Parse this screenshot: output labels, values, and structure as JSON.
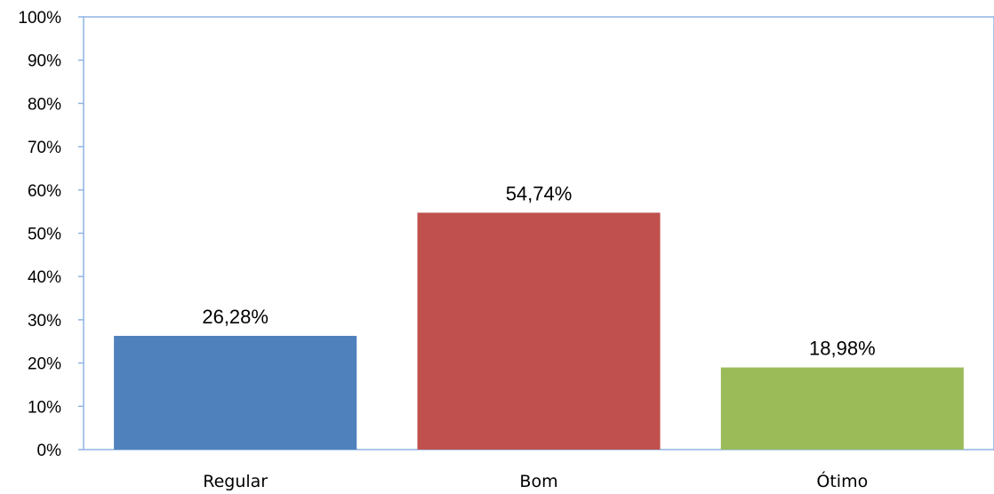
{
  "chart_data": {
    "type": "bar",
    "categories": [
      "Regular",
      "Bom",
      "Ótimo"
    ],
    "values": [
      26.28,
      54.74,
      18.98
    ],
    "data_labels": [
      "26,28%",
      "54,74%",
      "18,98%"
    ],
    "colors": [
      "#4F81BD",
      "#C0504D",
      "#9BBB59"
    ],
    "title": "",
    "xlabel": "",
    "ylabel": "",
    "ylim": [
      0,
      100
    ],
    "yticks": [
      0,
      10,
      20,
      30,
      40,
      50,
      60,
      70,
      80,
      90,
      100
    ],
    "ytick_labels": [
      "0%",
      "10%",
      "20%",
      "30%",
      "40%",
      "50%",
      "60%",
      "70%",
      "80%",
      "90%",
      "100%"
    ],
    "grid": false,
    "legend": "none",
    "axis_color": "#8EB4E3"
  }
}
